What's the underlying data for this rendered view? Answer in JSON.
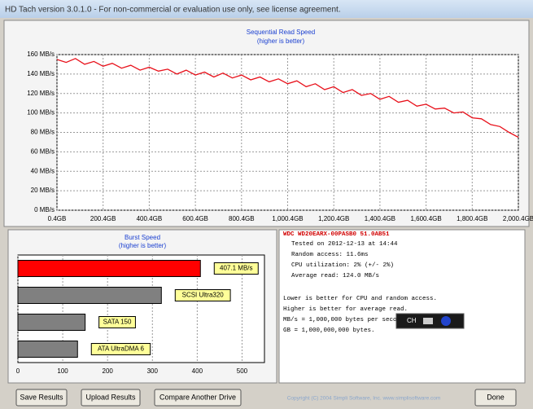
{
  "window_title": "HD Tach version 3.0.1.0  - For non-commercial or evaluation use only, see license agreement.",
  "chart_data": [
    {
      "type": "line",
      "title": "Sequential Read Speed",
      "subtitle": "(higher is better)",
      "color": "#e8101a",
      "x": [
        0.4,
        40.4,
        80.4,
        120.4,
        160.4,
        200.4,
        240.4,
        280.4,
        320.4,
        360.4,
        400.4,
        440.4,
        480.4,
        520.4,
        560.4,
        600.4,
        640.4,
        680.4,
        720.4,
        760.4,
        800.4,
        840.4,
        880.4,
        920.4,
        960.4,
        1000.4,
        1040.4,
        1080.4,
        1120.4,
        1160.4,
        1200.4,
        1240.4,
        1280.4,
        1320.4,
        1360.4,
        1400.4,
        1440.4,
        1480.4,
        1520.4,
        1560.4,
        1600.4,
        1640.4,
        1680.4,
        1720.4,
        1760.4,
        1800.4,
        1840.4,
        1880.4,
        1920.4,
        1960.4,
        2000.4
      ],
      "values": [
        155,
        152,
        156,
        150,
        153,
        148,
        151,
        146,
        149,
        144,
        147,
        143,
        145,
        140,
        144,
        139,
        142,
        137,
        141,
        136,
        139,
        134,
        137,
        132,
        135,
        130,
        133,
        127,
        130,
        124,
        127,
        121,
        124,
        118,
        120,
        114,
        117,
        111,
        113,
        107,
        109,
        104,
        105,
        100,
        101,
        95,
        94,
        88,
        86,
        80,
        75
      ],
      "xlim": [
        0.4,
        2000.4
      ],
      "xticks": [
        {
          "value": 0.4,
          "label": "0.4GB"
        },
        {
          "value": 200.4,
          "label": "200.4GB"
        },
        {
          "value": 400.4,
          "label": "400.4GB"
        },
        {
          "value": 600.4,
          "label": "600.4GB"
        },
        {
          "value": 800.4,
          "label": "800.4GB"
        },
        {
          "value": 1000.4,
          "label": "1,000.4GB"
        },
        {
          "value": 1200.4,
          "label": "1,200.4GB"
        },
        {
          "value": 1400.4,
          "label": "1,400.4GB"
        },
        {
          "value": 1600.4,
          "label": "1,600.4GB"
        },
        {
          "value": 1800.4,
          "label": "1,800.4GB"
        },
        {
          "value": 2000.4,
          "label": "2,000.4GB"
        }
      ],
      "ylim": [
        0,
        160
      ],
      "yticks": [
        {
          "value": 0,
          "label": "0 MB/s"
        },
        {
          "value": 20,
          "label": "20 MB/s"
        },
        {
          "value": 40,
          "label": "40 MB/s"
        },
        {
          "value": 60,
          "label": "60 MB/s"
        },
        {
          "value": 80,
          "label": "80 MB/s"
        },
        {
          "value": 100,
          "label": "100 MB/s"
        },
        {
          "value": 120,
          "label": "120 MB/s"
        },
        {
          "value": 140,
          "label": "140 MB/s"
        },
        {
          "value": 160,
          "label": "160 MB/s"
        }
      ],
      "grid": true
    },
    {
      "type": "barh",
      "title": "Burst Speed",
      "subtitle": "(higher is better)",
      "categories": [
        null,
        "SCSI Ultra320",
        "SATA 150",
        "ATA UltraDMA 6"
      ],
      "values": [
        407.1,
        320,
        150,
        133
      ],
      "value_labels": [
        "407.1 MB/s",
        null,
        null,
        null
      ],
      "colors": [
        "#ff0000",
        "#808080",
        "#808080",
        "#808080"
      ],
      "xlim": [
        0,
        550
      ],
      "xticks": [
        0,
        100,
        200,
        300,
        400,
        500
      ],
      "grid": true
    }
  ],
  "info": {
    "drive": "WDC WD20EARX-00PASB0 51.0AB51",
    "lines": [
      "Tested on 2012-12-13 at 14:44",
      "Random access: 11.6ms",
      "CPU utilization: 2% (+/- 2%)",
      "Average read: 124.0 MB/s"
    ],
    "notes": [
      "Lower is better for CPU and random access.",
      "Higher is better for average read.",
      "MB/s = 1,000,000 bytes per second.",
      "GB = 1,000,000,000 bytes."
    ]
  },
  "toolbar": "CH",
  "buttons": [
    "Save Results",
    "Upload Results",
    "Compare Another Drive",
    "Done"
  ],
  "copyright": "Copyright (C) 2004 Simpli Software, Inc. www.simplisoftware.com"
}
